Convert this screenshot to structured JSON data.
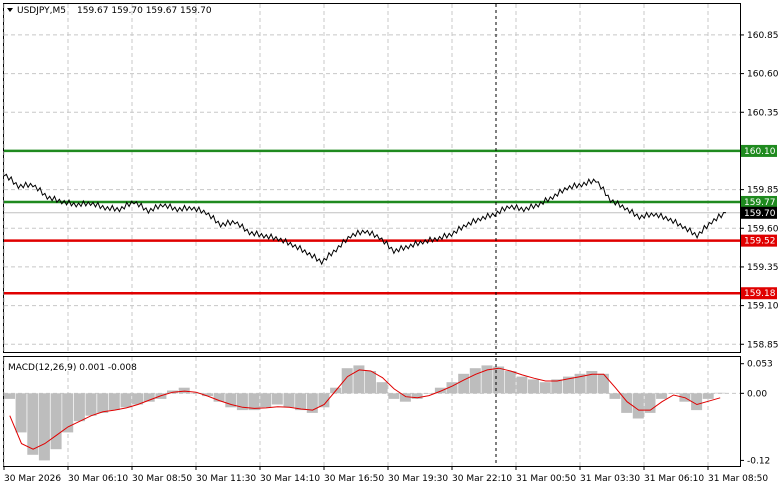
{
  "header": {
    "symbol_tf": "USDJPY,M5",
    "ohlc": "159.67 159.70 159.67 159.70"
  },
  "indicator": {
    "label": "MACD(12,26,9) 0.001 -0.008"
  },
  "chart_data": {
    "type": "line",
    "price_axis": {
      "ticks": [
        "160.85",
        "160.60",
        "160.35",
        "159.85",
        "159.60",
        "159.35",
        "159.10",
        "158.85"
      ],
      "tick_values": [
        160.85,
        160.6,
        160.35,
        159.85,
        159.6,
        159.35,
        159.1,
        158.85
      ],
      "range": [
        158.8,
        161.05
      ]
    },
    "levels": [
      {
        "label": "160.10",
        "value": 160.1,
        "color": "#1f8a1f"
      },
      {
        "label": "159.77",
        "value": 159.77,
        "color": "#1f8a1f"
      },
      {
        "label": "159.70",
        "value": 159.7,
        "color": "#000000"
      },
      {
        "label": "159.52",
        "value": 159.52,
        "color": "#e00000"
      },
      {
        "label": "159.18",
        "value": 159.18,
        "color": "#e00000"
      }
    ],
    "time_axis": [
      "30 Mar 2026",
      "30 Mar 06:10",
      "30 Mar 08:50",
      "30 Mar 11:30",
      "30 Mar 14:10",
      "30 Mar 16:50",
      "30 Mar 19:30",
      "30 Mar 22:10",
      "31 Mar 00:50",
      "31 Mar 03:30",
      "31 Mar 06:10",
      "31 Mar 08:50"
    ],
    "price_series": [
      [
        0,
        159.95
      ],
      [
        0.02,
        159.87
      ],
      [
        0.04,
        159.88
      ],
      [
        0.06,
        159.8
      ],
      [
        0.08,
        159.77
      ],
      [
        0.1,
        159.75
      ],
      [
        0.12,
        159.76
      ],
      [
        0.14,
        159.73
      ],
      [
        0.16,
        159.72
      ],
      [
        0.18,
        159.77
      ],
      [
        0.2,
        159.71
      ],
      [
        0.22,
        159.75
      ],
      [
        0.24,
        159.72
      ],
      [
        0.26,
        159.73
      ],
      [
        0.28,
        159.7
      ],
      [
        0.3,
        159.62
      ],
      [
        0.32,
        159.64
      ],
      [
        0.34,
        159.57
      ],
      [
        0.36,
        159.55
      ],
      [
        0.38,
        159.53
      ],
      [
        0.4,
        159.49
      ],
      [
        0.42,
        159.44
      ],
      [
        0.44,
        159.38
      ],
      [
        0.46,
        159.46
      ],
      [
        0.48,
        159.55
      ],
      [
        0.5,
        159.58
      ],
      [
        0.52,
        159.54
      ],
      [
        0.54,
        159.45
      ],
      [
        0.56,
        159.48
      ],
      [
        0.58,
        159.51
      ],
      [
        0.6,
        159.53
      ],
      [
        0.62,
        159.56
      ],
      [
        0.64,
        159.62
      ],
      [
        0.66,
        159.66
      ],
      [
        0.68,
        159.69
      ],
      [
        0.7,
        159.74
      ],
      [
        0.72,
        159.72
      ],
      [
        0.74,
        159.75
      ],
      [
        0.76,
        159.8
      ],
      [
        0.78,
        159.86
      ],
      [
        0.8,
        159.88
      ],
      [
        0.82,
        159.91
      ],
      [
        0.84,
        159.78
      ],
      [
        0.86,
        159.73
      ],
      [
        0.88,
        159.67
      ],
      [
        0.9,
        159.69
      ],
      [
        0.92,
        159.66
      ],
      [
        0.94,
        159.61
      ],
      [
        0.96,
        159.55
      ],
      [
        0.98,
        159.64
      ],
      [
        1.0,
        159.7
      ]
    ],
    "macd_axis": {
      "ticks": [
        "0.053",
        "0.00",
        "-0.12"
      ],
      "tick_values": [
        0.053,
        0.0,
        -0.12
      ],
      "range": [
        -0.13,
        0.065
      ]
    },
    "macd_histogram": [
      -0.01,
      -0.07,
      -0.11,
      -0.12,
      -0.1,
      -0.07,
      -0.05,
      -0.04,
      -0.035,
      -0.03,
      -0.025,
      -0.02,
      -0.015,
      -0.01,
      0.005,
      0.01,
      0.0,
      -0.005,
      -0.015,
      -0.025,
      -0.03,
      -0.03,
      -0.025,
      -0.02,
      -0.025,
      -0.03,
      -0.035,
      -0.025,
      0.01,
      0.045,
      0.05,
      0.04,
      0.02,
      -0.01,
      -0.015,
      -0.01,
      0.0,
      0.01,
      0.02,
      0.035,
      0.045,
      0.05,
      0.048,
      0.04,
      0.03,
      0.025,
      0.02,
      0.025,
      0.03,
      0.035,
      0.04,
      0.035,
      -0.01,
      -0.035,
      -0.045,
      -0.035,
      -0.01,
      0.0,
      -0.015,
      -0.03,
      -0.01,
      0.001
    ],
    "macd_signal": [
      -0.04,
      -0.09,
      -0.1,
      -0.09,
      -0.075,
      -0.06,
      -0.05,
      -0.04,
      -0.033,
      -0.03,
      -0.026,
      -0.02,
      -0.012,
      -0.004,
      0.002,
      0.004,
      0.002,
      -0.005,
      -0.013,
      -0.02,
      -0.025,
      -0.027,
      -0.026,
      -0.024,
      -0.025,
      -0.028,
      -0.03,
      -0.02,
      0.005,
      0.03,
      0.042,
      0.04,
      0.028,
      0.008,
      -0.006,
      -0.008,
      -0.004,
      0.004,
      0.013,
      0.024,
      0.034,
      0.042,
      0.045,
      0.04,
      0.033,
      0.027,
      0.022,
      0.022,
      0.026,
      0.03,
      0.034,
      0.034,
      0.01,
      -0.015,
      -0.03,
      -0.03,
      -0.015,
      -0.003,
      -0.008,
      -0.02,
      -0.014,
      -0.008
    ]
  }
}
